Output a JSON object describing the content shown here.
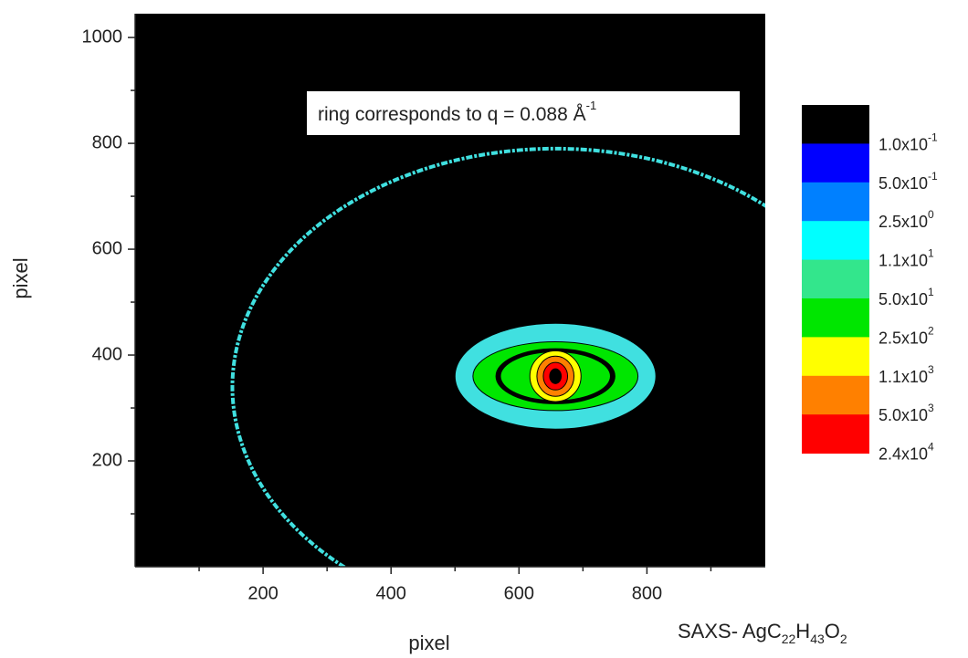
{
  "chart_data": {
    "type": "detector-image",
    "x_label": "pixel",
    "y_label": "pixel",
    "xlim": [
      0,
      985
    ],
    "ylim": [
      0,
      1045
    ],
    "xticks": [
      200,
      400,
      600,
      800
    ],
    "yticks": [
      200,
      400,
      600,
      800,
      1000
    ],
    "xminor": [
      100,
      300,
      500,
      700,
      900
    ],
    "yminor": [
      100,
      300,
      500,
      700,
      900
    ],
    "background": "#000000",
    "annotation": [
      "ring corresponds to q = 0.088 Å",
      "-1"
    ],
    "sample": [
      "SAXS- AgC",
      "22",
      "H",
      "43",
      "O",
      "2"
    ],
    "ring": {
      "center_x": 657,
      "center_y": 340,
      "rx": 505,
      "ry": 450,
      "color": "#40e0e0"
    },
    "spot": {
      "center_x": 657,
      "center_y": 360,
      "layers": [
        {
          "color": "#40e0e0",
          "rx": 157,
          "ry": 100
        },
        {
          "color": "#00e600",
          "rx": 129,
          "ry": 65
        },
        {
          "color": "#000000",
          "rx": 93,
          "ry": 52
        },
        {
          "color": "#00e600",
          "rx": 86,
          "ry": 46
        },
        {
          "color": "#ffff00",
          "rx": 40,
          "ry": 48
        },
        {
          "color": "#ff8000",
          "rx": 29,
          "ry": 38
        },
        {
          "color": "#ff0000",
          "rx": 19,
          "ry": 26
        },
        {
          "color": "#000000",
          "rx": 9,
          "ry": 14
        }
      ]
    },
    "colorbar": {
      "colors": [
        "#000000",
        "#0000ff",
        "#0080ff",
        "#00ffff",
        "#33e68c",
        "#00e600",
        "#ffff00",
        "#ff8000",
        "#ff0000"
      ],
      "levels": [
        {
          "value": 0.1,
          "label": [
            "1.0x10",
            "-1"
          ]
        },
        {
          "value": 0.5,
          "label": [
            "5.0x10",
            "-1"
          ]
        },
        {
          "value": 2.5,
          "label": [
            "2.5x10",
            "0"
          ]
        },
        {
          "value": 11,
          "label": [
            "1.1x10",
            "1"
          ]
        },
        {
          "value": 50,
          "label": [
            "5.0x10",
            "1"
          ]
        },
        {
          "value": 250,
          "label": [
            "2.5x10",
            "2"
          ]
        },
        {
          "value": 1100,
          "label": [
            "1.1x10",
            "3"
          ]
        },
        {
          "value": 5000,
          "label": [
            "5.0x10",
            "3"
          ]
        },
        {
          "value": 24000,
          "label": [
            "2.4x10",
            "4"
          ]
        }
      ]
    }
  }
}
